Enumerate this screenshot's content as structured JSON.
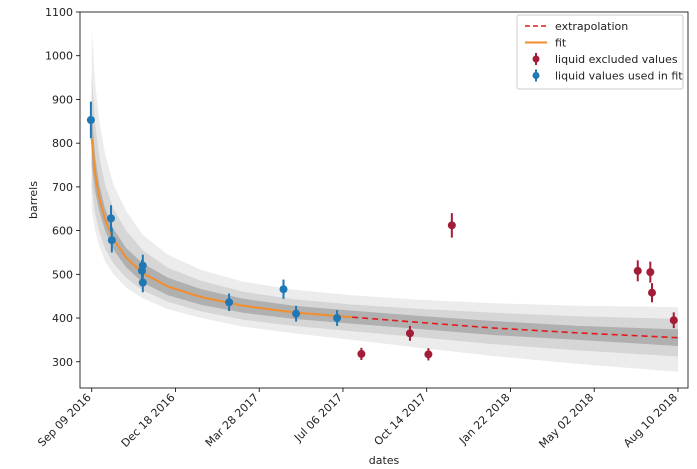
{
  "chart_data": {
    "type": "scatter",
    "xlabel": "dates",
    "ylabel": "barrels",
    "ylim": [
      240,
      1100
    ],
    "xlim": [
      "2016-08-26",
      "2018-08-22"
    ],
    "y_ticks": [
      300,
      400,
      500,
      600,
      700,
      800,
      900,
      1000,
      1100
    ],
    "y_tick_labels": [
      "300",
      "400",
      "500",
      "600",
      "700",
      "800",
      "900",
      "1000",
      "1100"
    ],
    "x_ticks": [
      "2016-09-09",
      "2016-12-18",
      "2017-03-28",
      "2017-07-06",
      "2017-10-14",
      "2018-01-22",
      "2018-05-02",
      "2018-08-10"
    ],
    "x_tick_labels": [
      "Sep 09 2016",
      "Dec 18 2016",
      "Mar 28 2017",
      "Jul 06 2017",
      "Oct 14 2017",
      "Jan 22 2018",
      "May 02 2018",
      "Aug 10 2018"
    ],
    "legend": {
      "position": "upper right",
      "entries": [
        "extrapolation",
        "fit",
        "liquid excluded values",
        "liquid values used in fit"
      ]
    },
    "colors": {
      "fit": "#f28e2b",
      "extrapolation": "#e31a1c",
      "used": "#1f77b4",
      "excluded": "#a31d38",
      "band_outer": "#ececec",
      "band_mid": "#d6d6d6",
      "band_inner": "#b0b0b0"
    },
    "series": [
      {
        "name": "liquid values used in fit",
        "points": [
          {
            "x": "2016-09-08",
            "y": 853,
            "err": 42
          },
          {
            "x": "2016-10-02",
            "y": 628,
            "err": 30
          },
          {
            "x": "2016-10-03",
            "y": 578,
            "err": 28
          },
          {
            "x": "2016-11-08",
            "y": 508,
            "err": 25
          },
          {
            "x": "2016-11-09",
            "y": 520,
            "err": 25
          },
          {
            "x": "2016-11-09",
            "y": 481,
            "err": 22
          },
          {
            "x": "2017-02-20",
            "y": 436,
            "err": 20
          },
          {
            "x": "2017-04-26",
            "y": 466,
            "err": 22
          },
          {
            "x": "2017-05-11",
            "y": 410,
            "err": 18
          },
          {
            "x": "2017-06-29",
            "y": 400,
            "err": 18
          }
        ]
      },
      {
        "name": "liquid excluded values",
        "points": [
          {
            "x": "2017-07-28",
            "y": 318,
            "err": 14
          },
          {
            "x": "2017-09-24",
            "y": 365,
            "err": 17
          },
          {
            "x": "2017-10-16",
            "y": 317,
            "err": 14
          },
          {
            "x": "2017-11-13",
            "y": 612,
            "err": 28
          },
          {
            "x": "2018-06-23",
            "y": 508,
            "err": 24
          },
          {
            "x": "2018-07-08",
            "y": 505,
            "err": 24
          },
          {
            "x": "2018-07-10",
            "y": 458,
            "err": 22
          },
          {
            "x": "2018-08-05",
            "y": 395,
            "err": 18
          }
        ]
      },
      {
        "name": "fit",
        "points": [
          {
            "x": "2016-09-09",
            "y": 810
          },
          {
            "x": "2016-09-13",
            "y": 730
          },
          {
            "x": "2016-09-18",
            "y": 675
          },
          {
            "x": "2016-09-25",
            "y": 625
          },
          {
            "x": "2016-10-05",
            "y": 580
          },
          {
            "x": "2016-10-20",
            "y": 538
          },
          {
            "x": "2016-11-09",
            "y": 503
          },
          {
            "x": "2016-12-09",
            "y": 472
          },
          {
            "x": "2017-01-18",
            "y": 448
          },
          {
            "x": "2017-03-09",
            "y": 428
          },
          {
            "x": "2017-05-08",
            "y": 413
          },
          {
            "x": "2017-07-17",
            "y": 402
          }
        ]
      },
      {
        "name": "extrapolation",
        "points": [
          {
            "x": "2017-07-17",
            "y": 402
          },
          {
            "x": "2017-10-05",
            "y": 390
          },
          {
            "x": "2018-01-03",
            "y": 377
          },
          {
            "x": "2018-04-13",
            "y": 366
          },
          {
            "x": "2018-08-10",
            "y": 355
          }
        ]
      }
    ],
    "bands": {
      "outer": {
        "x": [
          "2016-09-09",
          "2016-09-13",
          "2016-09-18",
          "2016-09-25",
          "2016-10-05",
          "2016-10-20",
          "2016-11-09",
          "2016-12-09",
          "2017-01-18",
          "2017-03-09",
          "2017-05-08",
          "2017-07-17",
          "2017-10-05",
          "2018-01-03",
          "2018-04-13",
          "2018-08-10"
        ],
        "upper": [
          1065,
          940,
          850,
          775,
          705,
          645,
          590,
          545,
          510,
          483,
          465,
          452,
          442,
          434,
          428,
          425
        ],
        "lower": [
          650,
          600,
          565,
          530,
          500,
          470,
          445,
          420,
          400,
          380,
          365,
          350,
          332,
          313,
          295,
          277
        ]
      },
      "mid": {
        "x": [
          "2016-09-09",
          "2016-09-13",
          "2016-09-18",
          "2016-09-25",
          "2016-10-05",
          "2016-10-20",
          "2016-11-09",
          "2016-12-09",
          "2017-01-18",
          "2017-03-09",
          "2017-05-08",
          "2017-07-17",
          "2017-10-05",
          "2018-01-03",
          "2018-04-13",
          "2018-08-10"
        ],
        "upper": [
          960,
          845,
          770,
          705,
          650,
          600,
          555,
          515,
          485,
          460,
          443,
          431,
          421,
          412,
          404,
          398
        ],
        "lower": [
          700,
          640,
          598,
          558,
          525,
          492,
          463,
          437,
          415,
          396,
          382,
          370,
          356,
          340,
          326,
          312
        ]
      },
      "inner": {
        "x": [
          "2016-09-09",
          "2016-09-13",
          "2016-09-18",
          "2016-09-25",
          "2016-10-05",
          "2016-10-20",
          "2016-11-09",
          "2016-12-09",
          "2017-01-18",
          "2017-03-09",
          "2017-05-08",
          "2017-07-17",
          "2017-10-05",
          "2018-01-03",
          "2018-04-13",
          "2018-08-10"
        ],
        "upper": [
          870,
          770,
          705,
          650,
          604,
          560,
          525,
          492,
          466,
          444,
          428,
          417,
          405,
          393,
          382,
          374
        ],
        "lower": [
          750,
          690,
          645,
          600,
          556,
          516,
          481,
          452,
          430,
          412,
          398,
          387,
          375,
          361,
          350,
          336
        ]
      }
    }
  }
}
